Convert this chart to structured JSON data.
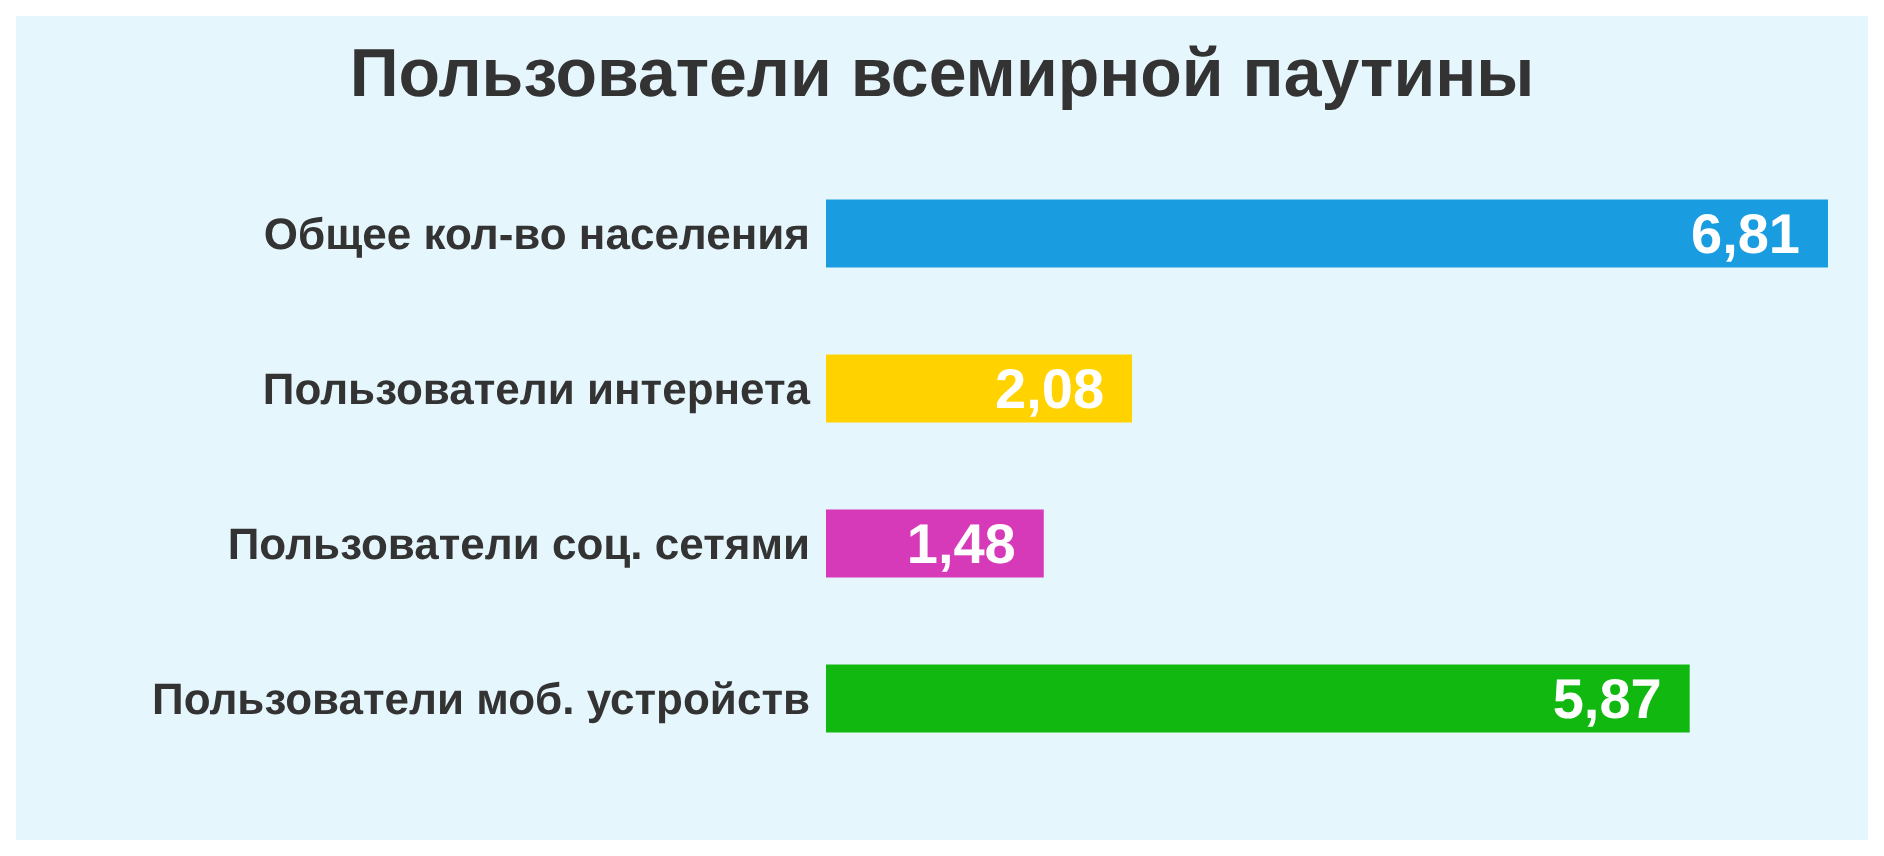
{
  "chart_data": {
    "type": "bar",
    "orientation": "horizontal",
    "title": "Пользователи всемирной паутины",
    "categories": [
      "Общее кол-во населения",
      "Пользователи интернета",
      "Пользователи соц. сетями",
      "Пользователи моб. устройств"
    ],
    "values": [
      6.81,
      2.08,
      1.48,
      5.87
    ],
    "colors": [
      "#1a9de0",
      "#ffd200",
      "#d63ab8",
      "#10b810"
    ],
    "value_labels": [
      "6,81",
      "2,08",
      "1,48",
      "5,87"
    ],
    "grid": false,
    "legend": false
  }
}
